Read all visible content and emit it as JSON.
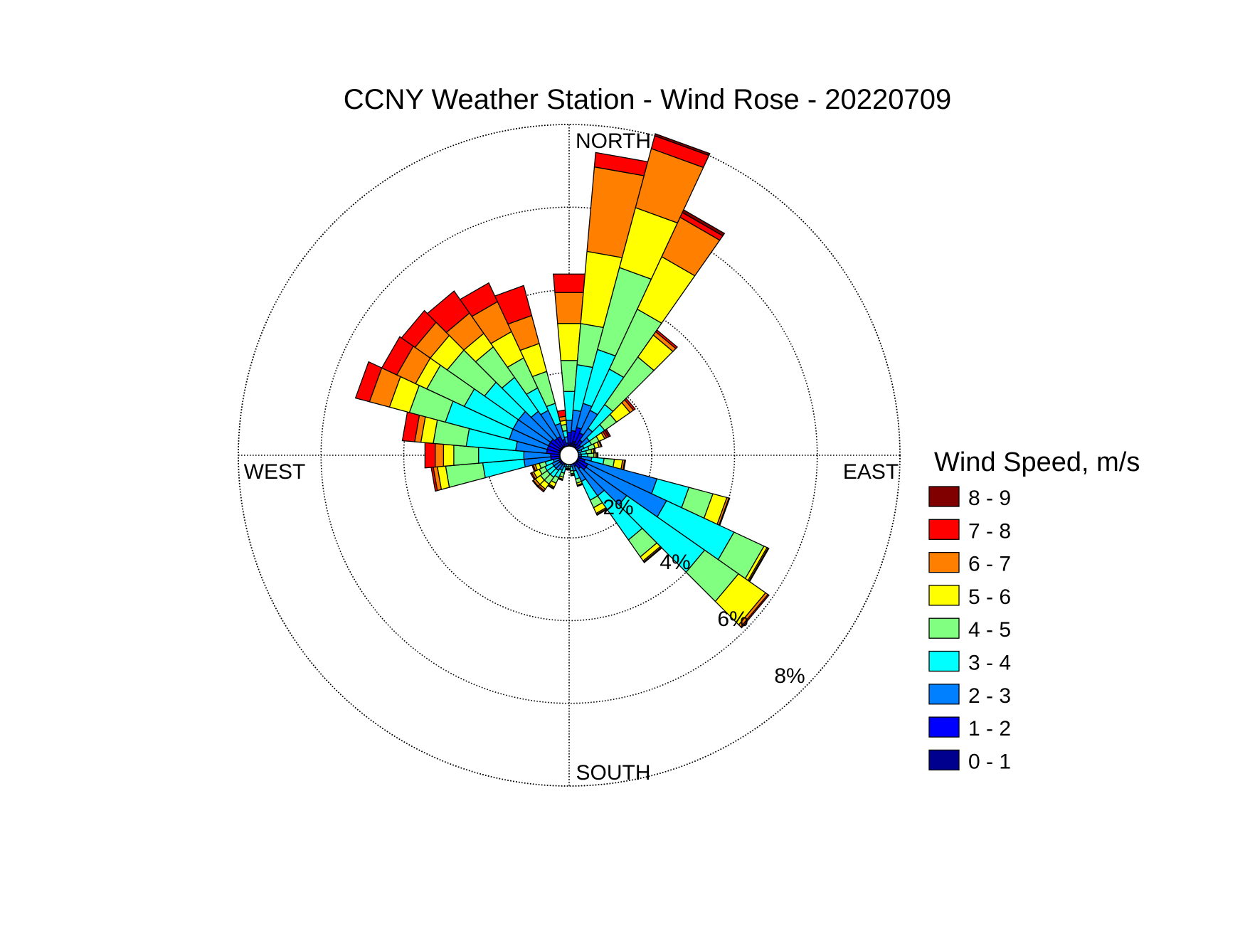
{
  "chart_data": {
    "type": "wind-rose",
    "title": "CCNY Weather Station - Wind Rose - 20220709",
    "direction_labels": {
      "north": "NORTH",
      "south": "SOUTH",
      "east": "EAST",
      "west": "WEST"
    },
    "ring_labels": [
      "2%",
      "4%",
      "6%",
      "8%"
    ],
    "ring_values": [
      2,
      4,
      6,
      8
    ],
    "rmax": 8,
    "unit": "%",
    "sectors": 36,
    "sector_width_deg": 10,
    "legend_title": "Wind Speed, m/s",
    "speed_bins": [
      {
        "label": "0 - 1",
        "color": "#00008f"
      },
      {
        "label": "1 - 2",
        "color": "#0000ff"
      },
      {
        "label": "2 - 3",
        "color": "#0080ff"
      },
      {
        "label": "3 - 4",
        "color": "#00ffff"
      },
      {
        "label": "4 - 5",
        "color": "#80ff80"
      },
      {
        "label": "5 - 6",
        "color": "#ffff00"
      },
      {
        "label": "6 - 7",
        "color": "#ff8000"
      },
      {
        "label": "7 - 8",
        "color": "#ff0000"
      },
      {
        "label": "8 - 9",
        "color": "#800000"
      }
    ],
    "petals": [
      {
        "direction": 0,
        "cumulative": [
          0.25,
          0.55,
          0.85,
          1.55,
          2.3,
          3.2,
          3.95,
          4.4,
          4.4
        ]
      },
      {
        "direction": 10,
        "cumulative": [
          0.3,
          0.6,
          1.1,
          2.2,
          3.2,
          4.95,
          7.0,
          7.35,
          7.35
        ]
      },
      {
        "direction": 20,
        "cumulative": [
          0.35,
          0.7,
          1.3,
          2.65,
          4.7,
          6.2,
          7.68,
          8.0,
          8.05
        ]
      },
      {
        "direction": 30,
        "cumulative": [
          0.3,
          0.6,
          1.2,
          2.3,
          3.9,
          5.3,
          6.35,
          6.48,
          6.55
        ]
      },
      {
        "direction": 40,
        "cumulative": [
          0.25,
          0.45,
          0.8,
          1.5,
          2.9,
          3.55,
          3.65,
          3.7,
          3.7
        ]
      },
      {
        "direction": 50,
        "cumulative": [
          0.2,
          0.35,
          0.6,
          1.05,
          1.4,
          1.8,
          1.9,
          1.95,
          1.95
        ]
      },
      {
        "direction": 60,
        "cumulative": [
          0.15,
          0.25,
          0.4,
          0.6,
          0.8,
          0.95,
          1.0,
          1.05,
          1.1
        ]
      },
      {
        "direction": 70,
        "cumulative": [
          0.12,
          0.2,
          0.32,
          0.5,
          0.65,
          0.75,
          0.8,
          0.82,
          0.82
        ]
      },
      {
        "direction": 80,
        "cumulative": [
          0.1,
          0.18,
          0.28,
          0.42,
          0.55,
          0.6,
          0.63,
          0.64,
          0.64
        ]
      },
      {
        "direction": 90,
        "cumulative": [
          0.1,
          0.18,
          0.3,
          0.45,
          0.6,
          0.65,
          0.68,
          0.7,
          0.7
        ]
      },
      {
        "direction": 100,
        "cumulative": [
          0.15,
          0.3,
          0.55,
          0.85,
          1.1,
          1.3,
          1.35,
          1.37,
          1.37
        ]
      },
      {
        "direction": 110,
        "cumulative": [
          0.2,
          0.4,
          2.2,
          3.0,
          3.6,
          3.95,
          4.0,
          4.02,
          4.02
        ]
      },
      {
        "direction": 120,
        "cumulative": [
          0.25,
          0.5,
          2.6,
          4.4,
          5.2,
          5.28,
          5.31,
          5.33,
          5.33
        ]
      },
      {
        "direction": 130,
        "cumulative": [
          0.25,
          0.5,
          1.7,
          4.0,
          5.0,
          5.8,
          5.87,
          5.9,
          5.9
        ]
      },
      {
        "direction": 140,
        "cumulative": [
          0.2,
          0.4,
          1.2,
          2.5,
          3.0,
          3.12,
          3.15,
          3.17,
          3.17
        ]
      },
      {
        "direction": 150,
        "cumulative": [
          0.15,
          0.3,
          0.7,
          1.2,
          1.4,
          1.55,
          1.58,
          1.6,
          1.6
        ]
      },
      {
        "direction": 160,
        "cumulative": [
          0.12,
          0.22,
          0.4,
          0.6,
          0.7,
          0.75,
          0.77,
          0.78,
          0.78
        ]
      },
      {
        "direction": 170,
        "cumulative": [
          0.1,
          0.18,
          0.28,
          0.38,
          0.45,
          0.48,
          0.49,
          0.5,
          0.5
        ]
      },
      {
        "direction": 180,
        "cumulative": [
          0.1,
          0.16,
          0.22,
          0.28,
          0.32,
          0.34,
          0.35,
          0.36,
          0.36
        ]
      },
      {
        "direction": 190,
        "cumulative": [
          0.1,
          0.16,
          0.22,
          0.28,
          0.32,
          0.34,
          0.35,
          0.36,
          0.36
        ]
      },
      {
        "direction": 200,
        "cumulative": [
          0.12,
          0.2,
          0.3,
          0.45,
          0.55,
          0.6,
          0.62,
          0.63,
          0.63
        ]
      },
      {
        "direction": 210,
        "cumulative": [
          0.15,
          0.25,
          0.4,
          0.6,
          0.75,
          0.85,
          0.88,
          0.9,
          0.9
        ]
      },
      {
        "direction": 220,
        "cumulative": [
          0.15,
          0.28,
          0.45,
          0.65,
          0.85,
          1.0,
          1.05,
          1.08,
          1.08
        ]
      },
      {
        "direction": 230,
        "cumulative": [
          0.15,
          0.28,
          0.45,
          0.65,
          0.85,
          1.0,
          1.06,
          1.08,
          1.08
        ]
      },
      {
        "direction": 240,
        "cumulative": [
          0.15,
          0.28,
          0.45,
          0.65,
          0.8,
          0.95,
          1.0,
          1.03,
          1.03
        ]
      },
      {
        "direction": 250,
        "cumulative": [
          0.15,
          0.25,
          0.4,
          0.6,
          0.75,
          0.85,
          0.9,
          0.93,
          0.93
        ]
      },
      {
        "direction": 260,
        "cumulative": [
          0.2,
          0.45,
          1.1,
          2.1,
          3.0,
          3.2,
          3.3,
          3.35,
          3.35
        ]
      },
      {
        "direction": 270,
        "cumulative": [
          0.2,
          0.45,
          1.1,
          2.2,
          2.8,
          3.05,
          3.25,
          3.5,
          3.5
        ]
      },
      {
        "direction": 280,
        "cumulative": [
          0.25,
          0.55,
          1.3,
          2.5,
          3.3,
          3.6,
          3.75,
          4.05,
          4.05
        ]
      },
      {
        "direction": 290,
        "cumulative": [
          0.25,
          0.55,
          1.5,
          3.1,
          4.0,
          4.5,
          5.0,
          5.35,
          5.35
        ]
      },
      {
        "direction": 300,
        "cumulative": [
          0.25,
          0.55,
          1.5,
          2.8,
          3.8,
          4.1,
          4.6,
          5.0,
          5.0
        ]
      },
      {
        "direction": 310,
        "cumulative": [
          0.25,
          0.55,
          1.5,
          2.5,
          3.6,
          4.1,
          4.55,
          4.95,
          4.95
        ]
      },
      {
        "direction": 320,
        "cumulative": [
          0.25,
          0.5,
          1.3,
          2.3,
          3.2,
          3.6,
          4.2,
          4.85,
          4.85
        ]
      },
      {
        "direction": 330,
        "cumulative": [
          0.25,
          0.5,
          1.2,
          1.8,
          2.6,
          3.3,
          4.1,
          4.6,
          4.6
        ]
      },
      {
        "direction": 340,
        "cumulative": [
          0.2,
          0.4,
          0.8,
          1.3,
          2.1,
          2.8,
          3.5,
          4.25,
          4.25
        ]
      },
      {
        "direction": 350,
        "cumulative": [
          0.15,
          0.3,
          0.45,
          0.6,
          0.75,
          0.85,
          0.95,
          1.1,
          1.1
        ]
      }
    ]
  }
}
